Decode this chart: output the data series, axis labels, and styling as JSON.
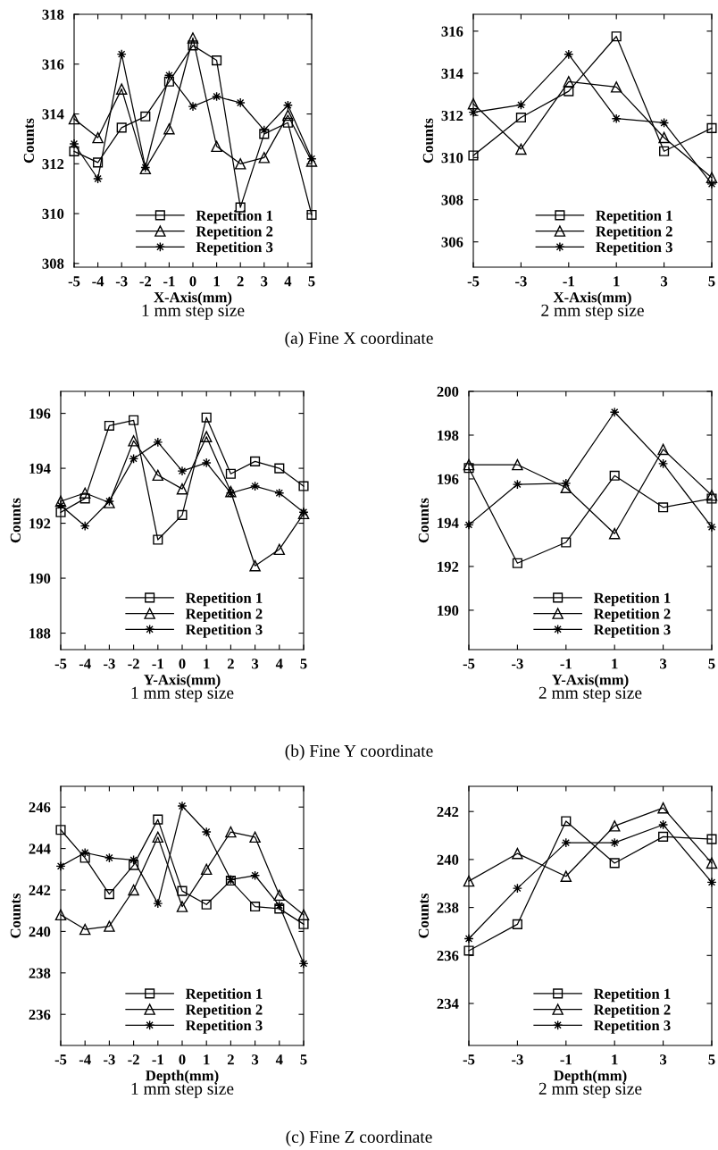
{
  "chart_data": [
    {
      "type": "line",
      "xlabel": "X-Axis(mm)",
      "ylabel": "Counts",
      "annotations": [
        "1 mm step size",
        "(a) Fine X coordinate"
      ],
      "x": [
        -5,
        -4,
        -3,
        -2,
        -1,
        0,
        1,
        2,
        3,
        4,
        5
      ],
      "xlim": [
        -5,
        5
      ],
      "xticks": [
        -5,
        -4,
        -3,
        -2,
        -1,
        0,
        1,
        2,
        3,
        4,
        5
      ],
      "ylim": [
        307.85,
        318
      ],
      "yticks": [
        308,
        310,
        312,
        314,
        316,
        318
      ],
      "legend": "bottom",
      "grid": false,
      "line_style": "solid",
      "series": [
        {
          "name": "Repetition 1",
          "color": "#000000",
          "marker": "square",
          "values": [
            312.5,
            312.05,
            313.45,
            313.9,
            315.3,
            316.75,
            316.15,
            310.25,
            313.2,
            313.65,
            309.95
          ]
        },
        {
          "name": "Repetition 2",
          "color": "#000000",
          "marker": "triangle",
          "values": [
            313.8,
            313.05,
            315.0,
            311.8,
            313.4,
            317.05,
            312.7,
            312.0,
            312.25,
            313.95,
            312.1
          ]
        },
        {
          "name": "Repetition 3",
          "color": "#000000",
          "marker": "star",
          "values": [
            312.8,
            311.4,
            316.4,
            311.85,
            315.55,
            314.3,
            314.7,
            314.45,
            313.35,
            314.35,
            312.2
          ]
        }
      ]
    },
    {
      "type": "line",
      "xlabel": "X-Axis(mm)",
      "ylabel": "Counts",
      "annotations": [
        "2 mm step size"
      ],
      "x": [
        -5,
        -3,
        -1,
        1,
        3,
        5
      ],
      "xlim": [
        -5,
        5
      ],
      "xticks": [
        -5,
        -3,
        -1,
        1,
        3,
        5
      ],
      "ylim": [
        304.8,
        316.8
      ],
      "yticks": [
        306,
        308,
        310,
        312,
        314,
        316
      ],
      "legend": "bottom",
      "grid": false,
      "line_style": "solid",
      "series": [
        {
          "name": "Repetition 1",
          "color": "#000000",
          "marker": "square",
          "values": [
            310.1,
            311.9,
            313.15,
            315.75,
            310.3,
            311.4
          ]
        },
        {
          "name": "Repetition 2",
          "color": "#000000",
          "marker": "triangle",
          "values": [
            312.55,
            310.4,
            313.6,
            313.35,
            310.95,
            309.05
          ]
        },
        {
          "name": "Repetition 3",
          "color": "#000000",
          "marker": "star",
          "values": [
            312.15,
            312.5,
            314.9,
            311.85,
            311.65,
            308.75
          ]
        }
      ]
    },
    {
      "type": "line",
      "xlabel": "Y-Axis(mm)",
      "ylabel": "Counts",
      "annotations": [
        "1 mm step size",
        "(b) Fine Y coordinate"
      ],
      "x": [
        -5,
        -4,
        -3,
        -2,
        -1,
        0,
        1,
        2,
        3,
        4,
        5
      ],
      "xlim": [
        -5,
        5
      ],
      "xticks": [
        -5,
        -4,
        -3,
        -2,
        -1,
        0,
        1,
        2,
        3,
        4,
        5
      ],
      "ylim": [
        187.4,
        196.8
      ],
      "yticks": [
        188,
        190,
        192,
        194,
        196
      ],
      "legend": "bottom",
      "grid": false,
      "line_style": "solid",
      "series": [
        {
          "name": "Repetition 1",
          "color": "#000000",
          "marker": "square",
          "values": [
            192.4,
            192.9,
            195.55,
            195.75,
            191.4,
            192.3,
            195.85,
            193.8,
            194.25,
            194.0,
            193.35
          ]
        },
        {
          "name": "Repetition 2",
          "color": "#000000",
          "marker": "triangle",
          "values": [
            192.8,
            193.1,
            192.75,
            195.0,
            193.75,
            193.25,
            195.15,
            193.15,
            190.45,
            191.05,
            192.35
          ]
        },
        {
          "name": "Repetition 3",
          "color": "#000000",
          "marker": "star",
          "values": [
            192.65,
            191.9,
            192.8,
            194.35,
            194.95,
            193.9,
            194.2,
            193.1,
            193.35,
            193.1,
            192.4
          ]
        }
      ]
    },
    {
      "type": "line",
      "xlabel": "Y-Axis(mm)",
      "ylabel": "Counts",
      "annotations": [
        "2 mm step size"
      ],
      "x": [
        -5,
        -3,
        -1,
        1,
        3,
        5
      ],
      "xlim": [
        -5,
        5
      ],
      "xticks": [
        -5,
        -3,
        -1,
        1,
        3,
        5
      ],
      "ylim": [
        188.2,
        200
      ],
      "yticks": [
        190,
        192,
        194,
        196,
        198,
        200
      ],
      "legend": "bottom",
      "grid": false,
      "line_style": "solid",
      "series": [
        {
          "name": "Repetition 1",
          "color": "#000000",
          "marker": "square",
          "values": [
            196.5,
            192.15,
            193.1,
            196.15,
            194.7,
            195.1
          ]
        },
        {
          "name": "Repetition 2",
          "color": "#000000",
          "marker": "triangle",
          "values": [
            196.65,
            196.65,
            195.6,
            193.5,
            197.35,
            195.25
          ]
        },
        {
          "name": "Repetition 3",
          "color": "#000000",
          "marker": "star",
          "values": [
            193.9,
            195.75,
            195.8,
            199.05,
            196.7,
            193.8
          ]
        }
      ]
    },
    {
      "type": "line",
      "xlabel": "Depth(mm)",
      "ylabel": "Counts",
      "annotations": [
        "1 mm step size",
        "(c) Fine Z coordinate"
      ],
      "x": [
        -5,
        -4,
        -3,
        -2,
        -1,
        0,
        1,
        2,
        3,
        4,
        5
      ],
      "xlim": [
        -5,
        5
      ],
      "xticks": [
        -5,
        -4,
        -3,
        -2,
        -1,
        0,
        1,
        2,
        3,
        4,
        5
      ],
      "ylim": [
        234.5,
        247
      ],
      "yticks": [
        236,
        238,
        240,
        242,
        244,
        246
      ],
      "legend": "bottom",
      "grid": false,
      "line_style": "solid",
      "series": [
        {
          "name": "Repetition 1",
          "color": "#000000",
          "marker": "square",
          "values": [
            244.9,
            243.55,
            241.8,
            243.2,
            245.4,
            241.95,
            241.3,
            242.45,
            241.2,
            241.1,
            240.35
          ]
        },
        {
          "name": "Repetition 2",
          "color": "#000000",
          "marker": "triangle",
          "values": [
            240.8,
            240.1,
            240.25,
            242.0,
            244.55,
            241.2,
            243.0,
            244.8,
            244.55,
            241.75,
            240.8
          ]
        },
        {
          "name": "Repetition 3",
          "color": "#000000",
          "marker": "star",
          "values": [
            243.15,
            243.8,
            243.55,
            243.45,
            241.35,
            246.05,
            244.8,
            242.5,
            242.7,
            241.25,
            238.45
          ]
        }
      ]
    },
    {
      "type": "line",
      "xlabel": "Depth(mm)",
      "ylabel": "Counts",
      "annotations": [
        "2 mm step size"
      ],
      "x": [
        -5,
        -3,
        -1,
        1,
        3,
        5
      ],
      "xlim": [
        -5,
        5
      ],
      "xticks": [
        -5,
        -3,
        -1,
        1,
        3,
        5
      ],
      "ylim": [
        232.25,
        243.05
      ],
      "yticks": [
        234,
        236,
        238,
        240,
        242
      ],
      "legend": "bottom",
      "grid": false,
      "line_style": "solid",
      "series": [
        {
          "name": "Repetition 1",
          "color": "#000000",
          "marker": "square",
          "values": [
            236.2,
            237.3,
            241.6,
            239.85,
            240.95,
            240.85
          ]
        },
        {
          "name": "Repetition 2",
          "color": "#000000",
          "marker": "triangle",
          "values": [
            239.1,
            240.25,
            239.3,
            241.4,
            242.15,
            239.85
          ]
        },
        {
          "name": "Repetition 3",
          "color": "#000000",
          "marker": "star",
          "values": [
            236.7,
            238.8,
            240.7,
            240.7,
            241.45,
            239.05
          ]
        }
      ]
    }
  ]
}
